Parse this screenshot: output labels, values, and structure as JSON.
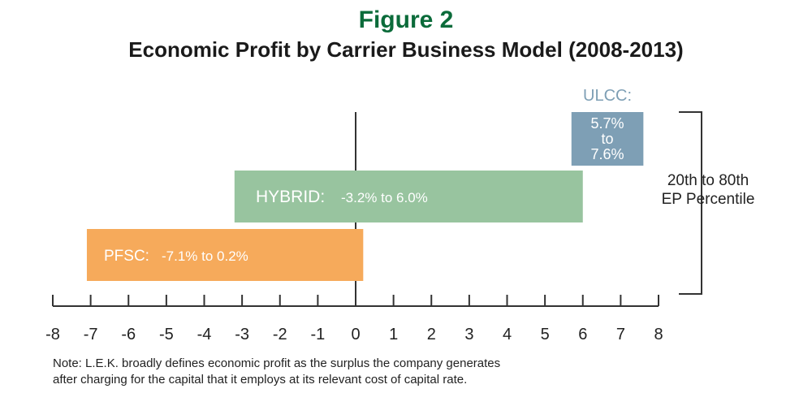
{
  "chart_data": {
    "type": "bar",
    "orientation": "horizontal-range",
    "figure_label": "Figure 2",
    "title": "Economic Profit by Carrier Business Model (2008-2013)",
    "xlim": [
      -8,
      8
    ],
    "x_ticks": [
      "-8",
      "-7",
      "-6",
      "-5",
      "-4",
      "-3",
      "-2",
      "-1",
      "0",
      "1",
      "2",
      "3",
      "4",
      "5",
      "6",
      "7",
      "8"
    ],
    "grid": false,
    "series": [
      {
        "category": "ULCC",
        "name_label": "ULCC:",
        "start": 5.7,
        "end": 7.6,
        "range_lines": [
          "5.7%",
          "to",
          "7.6%"
        ],
        "color": "#7e9fb5"
      },
      {
        "category": "HYBRID",
        "name_label": "HYBRID:",
        "start": -3.2,
        "end": 6.0,
        "range_text": "-3.2%  to 6.0%",
        "color": "#98c49f"
      },
      {
        "category": "PFSC",
        "name_label": "PFSC:",
        "start": -7.1,
        "end": 0.2,
        "range_text": "-7.1%  to 0.2%",
        "color": "#f6aa5b"
      }
    ],
    "bracket_label": [
      "20th to 80th",
      "EP Percentile"
    ],
    "note": [
      "Note: L.E.K. broadly defines economic profit as the surplus the company generates",
      "after charging for the capital that it employs at its relevant cost of capital rate."
    ]
  },
  "colors": {
    "figure_label": "#0b6b3a",
    "axis": "#333333",
    "ulcc_label": "#7e9fb5"
  }
}
